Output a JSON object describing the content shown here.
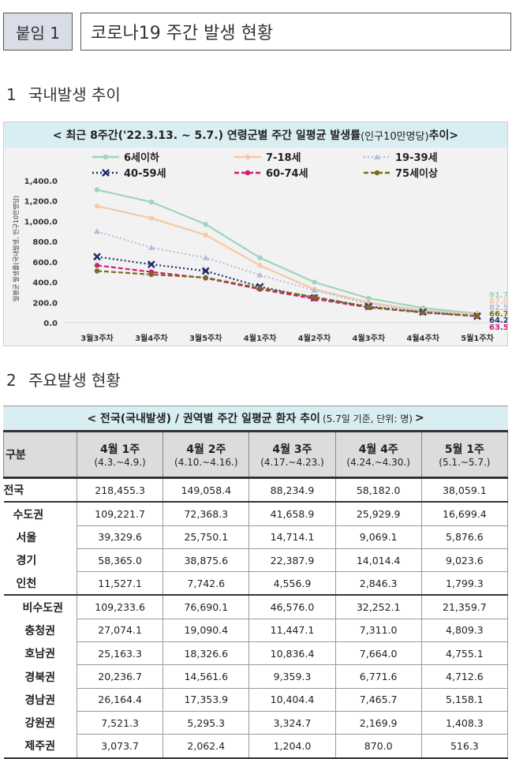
{
  "header": {
    "tag": "붙임 1",
    "title": "코로나19 주간 발생 현황"
  },
  "section1": {
    "number": "1",
    "title": "국내발생 추이"
  },
  "section2": {
    "number": "2",
    "title": "주요발생 현황"
  },
  "chart_title": {
    "main": "< 최근 8주간('22.3.13. ~ 5.7.) 연령군별 주간 일평균 발생률",
    "unit": "(인구10만명당)",
    "end": " 추이>"
  },
  "chart_data": {
    "type": "line",
    "title": "최근 8주간('22.3.13. ~ 5.7.) 연령군별 주간 일평균 발생률(인구10만명당) 추이",
    "ylabel": "일평균 발생률(국내발생, 인구10만명당)",
    "ylim": [
      0,
      1400
    ],
    "yticks": [
      "0.0",
      "200.0",
      "400.0",
      "600.0",
      "800.0",
      "1,000.0",
      "1,200.0",
      "1,400.0"
    ],
    "categories": [
      "3월3주차",
      "3월4주차",
      "3월5주차",
      "4월1주차",
      "4월2주차",
      "4월3주차",
      "4월4주차",
      "5월1주차"
    ],
    "series": [
      {
        "name": "6세이하",
        "color": "#9fd4c2",
        "dash": "solid",
        "marker": "circle",
        "values": [
          1310,
          1190,
          970,
          640,
          400,
          240,
          145,
          91.7
        ],
        "last_label": "91.7"
      },
      {
        "name": "7-18세",
        "color": "#f5c9a5",
        "dash": "solid",
        "marker": "circle",
        "values": [
          1150,
          1030,
          865,
          565,
          330,
          200,
          120,
          87.0
        ],
        "last_label": "87.0"
      },
      {
        "name": "19-39세",
        "color": "#b7bdd8",
        "dash": "dot",
        "marker": "triangle",
        "values": [
          900,
          740,
          640,
          470,
          320,
          185,
          115,
          82.5
        ],
        "last_label": "82.5"
      },
      {
        "name": "40-59세",
        "color": "#1e2d6b",
        "dash": "dot",
        "marker": "cross",
        "values": [
          650,
          575,
          510,
          355,
          245,
          160,
          105,
          64.2
        ],
        "last_label": "64.2"
      },
      {
        "name": "60-74세",
        "color": "#cc1f76",
        "dash": "dash",
        "marker": "circle",
        "values": [
          565,
          500,
          440,
          330,
          235,
          150,
          100,
          63.5
        ],
        "last_label": "63.5"
      },
      {
        "name": "75세이상",
        "color": "#7a6a1e",
        "dash": "dash",
        "marker": "circle",
        "values": [
          510,
          475,
          445,
          340,
          255,
          155,
          100,
          66.7
        ],
        "last_label": "66.7"
      }
    ]
  },
  "table": {
    "title_main": "< 전국(국내발생) / 권역별 주간 일평균 환자 추이",
    "title_note": "(5.7일 기준, 단위: 명)",
    "title_end": ">",
    "corner": "구분",
    "columns": [
      {
        "week": "4월 1주",
        "range": "(4.3.~4.9.)"
      },
      {
        "week": "4월 2주",
        "range": "(4.10.~4.16.)"
      },
      {
        "week": "4월 3주",
        "range": "(4.17.~4.23.)"
      },
      {
        "week": "4월 4주",
        "range": "(4.24.~4.30.)"
      },
      {
        "week": "5월 1주",
        "range": "(5.1.~5.7.)"
      }
    ],
    "rows": [
      {
        "name": "전국",
        "values": [
          "218,455.3",
          "149,058.4",
          "88,234.9",
          "58,182.0",
          "38,059.1"
        ]
      },
      {
        "name": "수도권",
        "values": [
          "109,221.7",
          "72,368.3",
          "41,658.9",
          "25,929.9",
          "16,699.4"
        ]
      },
      {
        "name": "서울",
        "values": [
          "39,329.6",
          "25,750.1",
          "14,714.1",
          "9,069.1",
          "5,876.6"
        ]
      },
      {
        "name": "경기",
        "values": [
          "58,365.0",
          "38,875.6",
          "22,387.9",
          "14,014.4",
          "9,023.6"
        ]
      },
      {
        "name": "인천",
        "values": [
          "11,527.1",
          "7,742.6",
          "4,556.9",
          "2,846.3",
          "1,799.3"
        ]
      },
      {
        "name": "비수도권",
        "values": [
          "109,233.6",
          "76,690.1",
          "46,576.0",
          "32,252.1",
          "21,359.7"
        ]
      },
      {
        "name": "충청권",
        "values": [
          "27,074.1",
          "19,090.4",
          "11,447.1",
          "7,311.0",
          "4,809.3"
        ]
      },
      {
        "name": "호남권",
        "values": [
          "25,163.3",
          "18,326.6",
          "10,836.4",
          "7,664.0",
          "4,755.1"
        ]
      },
      {
        "name": "경북권",
        "values": [
          "20,236.7",
          "14,561.6",
          "9,359.3",
          "6,771.6",
          "4,712.6"
        ]
      },
      {
        "name": "경남권",
        "values": [
          "26,164.4",
          "17,353.9",
          "10,404.4",
          "7,465.7",
          "5,158.1"
        ]
      },
      {
        "name": "강원권",
        "values": [
          "7,521.3",
          "5,295.3",
          "3,324.7",
          "2,169.9",
          "1,408.3"
        ]
      },
      {
        "name": "제주권",
        "values": [
          "3,073.7",
          "2,062.4",
          "1,204.0",
          "870.0",
          "516.3"
        ]
      }
    ]
  }
}
